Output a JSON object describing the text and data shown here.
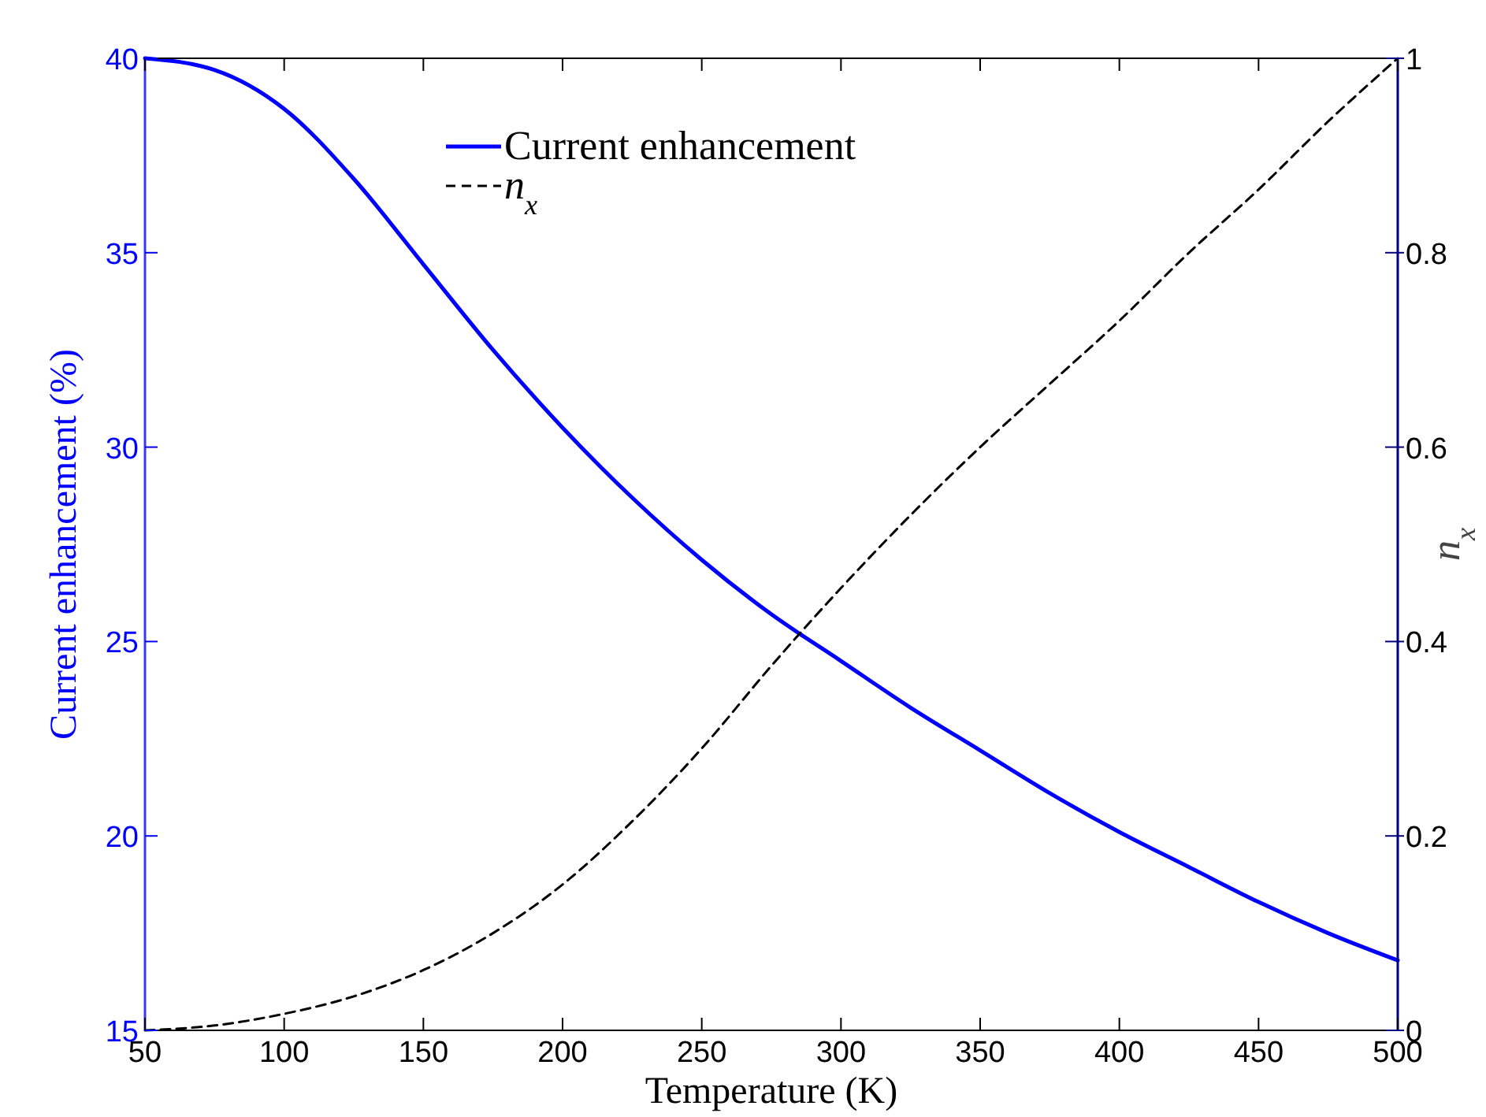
{
  "chart_data": {
    "type": "line",
    "xlabel": "Temperature (K)",
    "ylabel": "Current enhancement (%)",
    "y2label": "n$_{x}$",
    "x": [
      50,
      75,
      100,
      125,
      150,
      175,
      200,
      225,
      250,
      275,
      300,
      325,
      350,
      375,
      400,
      425,
      450,
      475,
      500
    ],
    "xlim": [
      50,
      500
    ],
    "xticks": [
      50,
      100,
      150,
      200,
      250,
      300,
      350,
      400,
      450,
      500
    ],
    "ylim": [
      15,
      40
    ],
    "yticks": [
      15,
      20,
      25,
      30,
      35,
      40
    ],
    "y2lim": [
      0,
      1
    ],
    "y2ticks": [
      0,
      0.2,
      0.4,
      0.6,
      0.8,
      1
    ],
    "legend": "top",
    "grid": false,
    "series": [
      {
        "name": "Current enhancement",
        "color": "#0000ff",
        "line_style": "solid",
        "values": [
          40,
          39.7,
          38.7,
          36.9,
          34.7,
          32.5,
          30.5,
          28.7,
          27.1,
          25.7,
          24.5,
          23.3,
          22.2,
          21.1,
          20.1,
          19.2,
          18.3,
          17.5,
          16.8
        ]
      },
      {
        "name": "n$_{x}$",
        "color": "#000000",
        "line_style": "dashed",
        "axis": "y2",
        "values": [
          0,
          0.005,
          0.017,
          0.035,
          0.062,
          0.1,
          0.15,
          0.215,
          0.29,
          0.375,
          0.455,
          0.53,
          0.6,
          0.665,
          0.73,
          0.8,
          0.865,
          0.935,
          1
        ]
      }
    ]
  }
}
